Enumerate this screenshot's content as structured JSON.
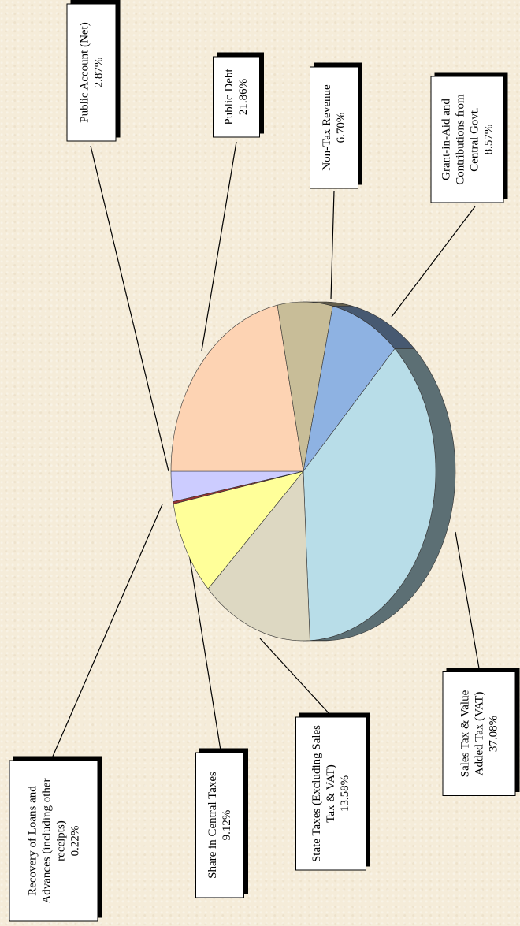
{
  "chart_data": {
    "type": "pie",
    "categories": [
      "Public Account (Net)",
      "Public Debt",
      "Non-Tax Revenue",
      "Grant-in-Aid and Contributions from Central Govt.",
      "Sales Tax & Value Added Tax (VAT)",
      "State Taxes (Excluding Sales Tax & VAT)",
      "Share in Central Taxes",
      "Recovery of Loans and Advances (including other receipts)"
    ],
    "values": [
      2.87,
      21.86,
      6.7,
      8.57,
      37.08,
      13.58,
      9.12,
      0.22
    ],
    "value_labels": [
      "2.87%",
      "21.86%",
      "6.70%",
      "8.57%",
      "37.08%",
      "13.58%",
      "9.12%",
      "0.22%"
    ],
    "colors": [
      "#ccccff",
      "#fdd3b3",
      "#c8bd98",
      "#8eb2e2",
      "#b8dde8",
      "#ddd8c2",
      "#ffff99",
      "#993333"
    ]
  }
}
